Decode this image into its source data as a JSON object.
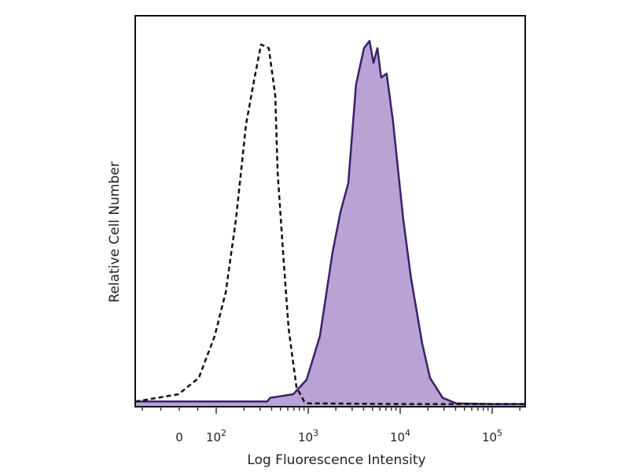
{
  "chart_data": {
    "type": "area",
    "title": "",
    "xlabel": "Log Fluorescence Intensity",
    "ylabel": "Relative Cell Number",
    "x_scale": "biexponential (linear near 0, log above 10^2)",
    "xlim": [
      -119,
      228600
    ],
    "ylim": [
      0,
      100
    ],
    "x_ticks": [
      {
        "value": 0,
        "base": "0",
        "exp": ""
      },
      {
        "value": 100,
        "base": "10",
        "exp": "2"
      },
      {
        "value": 1000,
        "base": "10",
        "exp": "3"
      },
      {
        "value": 10000,
        "base": "10",
        "exp": "4"
      },
      {
        "value": 100000,
        "base": "10",
        "exp": "5"
      }
    ],
    "grid": false,
    "legend": "none",
    "series": [
      {
        "style": "dashed outline (isotype control)",
        "color": "#111111",
        "points": [
          [
            -119,
            1
          ],
          [
            -117,
            1
          ],
          [
            -2,
            3
          ],
          [
            53,
            7.5
          ],
          [
            96,
            19
          ],
          [
            127,
            31
          ],
          [
            164,
            51
          ],
          [
            211,
            77
          ],
          [
            257,
            89
          ],
          [
            307,
            99
          ],
          [
            373,
            98
          ],
          [
            438,
            85
          ],
          [
            465,
            64
          ],
          [
            533,
            42
          ],
          [
            613,
            21
          ],
          [
            744,
            5
          ],
          [
            905,
            1
          ],
          [
            1000,
            0.5
          ],
          [
            10000,
            0.3
          ],
          [
            100000,
            0.3
          ],
          [
            228600,
            0.3
          ]
        ]
      },
      {
        "style": "filled with outline (stained)",
        "color": "#3b1f6b",
        "fill": "#b9a2d4",
        "points": [
          [
            -119,
            1
          ],
          [
            200,
            1
          ],
          [
            359,
            1
          ],
          [
            386,
            2
          ],
          [
            688,
            3
          ],
          [
            961,
            7
          ],
          [
            1340,
            19
          ],
          [
            1840,
            42
          ],
          [
            2240,
            53
          ],
          [
            2730,
            61
          ],
          [
            3310,
            88
          ],
          [
            4040,
            98
          ],
          [
            4640,
            100
          ],
          [
            5120,
            94
          ],
          [
            5650,
            98
          ],
          [
            6210,
            90
          ],
          [
            7130,
            91
          ],
          [
            8350,
            78
          ],
          [
            10800,
            51
          ],
          [
            13100,
            35
          ],
          [
            17300,
            17
          ],
          [
            21100,
            7.5
          ],
          [
            28900,
            2
          ],
          [
            40400,
            0.5
          ],
          [
            100000,
            0.3
          ],
          [
            228600,
            0.3
          ]
        ]
      }
    ]
  }
}
